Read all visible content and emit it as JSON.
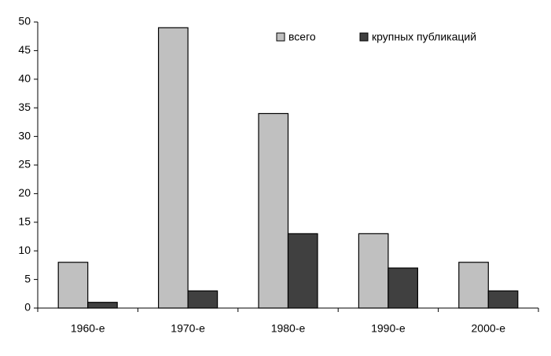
{
  "chart_data": {
    "type": "bar",
    "categories": [
      "1960-е",
      "1970-е",
      "1980-е",
      "1990-е",
      "2000-е"
    ],
    "series": [
      {
        "name": "всего",
        "color": "#c0c0c0",
        "values": [
          8,
          49,
          34,
          13,
          8
        ]
      },
      {
        "name": "крупных публикаций",
        "color": "#404040",
        "values": [
          1,
          3,
          13,
          7,
          3
        ]
      }
    ],
    "ylim": [
      0,
      50
    ],
    "yticks": [
      0,
      5,
      10,
      15,
      20,
      25,
      30,
      35,
      40,
      45,
      50
    ],
    "grid": false,
    "legend": "top-right"
  }
}
